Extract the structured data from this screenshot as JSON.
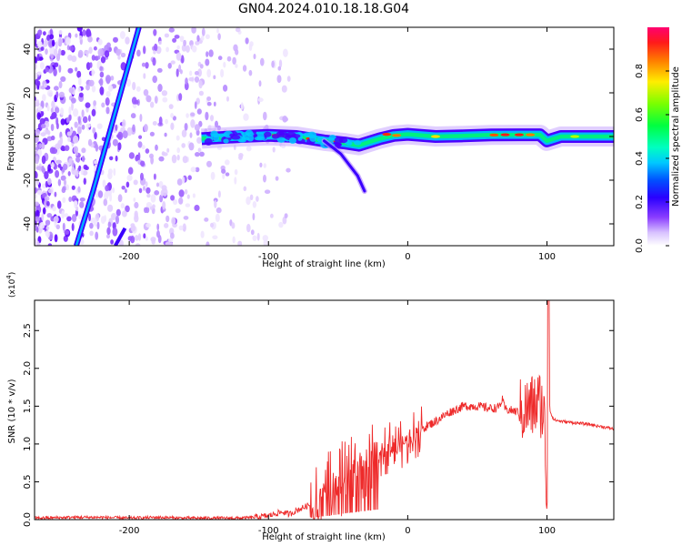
{
  "figure": {
    "title": "GN04.2024.010.18.18.G04",
    "colors": {
      "snr_line": "#ee2a2a",
      "colormap": [
        "#ffffff",
        "#e6d3ff",
        "#9b4dff",
        "#5a00ff",
        "#0030ff",
        "#00e0ff",
        "#00ff60",
        "#b0ff00",
        "#ffe000",
        "#ff6000",
        "#ff0030",
        "#ff0080"
      ]
    }
  },
  "chart_data": [
    {
      "type": "heatmap",
      "xlabel": "Height of straight line (km)",
      "ylabel": "Frequency (Hz)",
      "xlim": [
        -268,
        148
      ],
      "ylim": [
        -50,
        50
      ],
      "xticks": [
        -200,
        -100,
        0,
        100
      ],
      "xtick_labels": [
        "-200",
        "-100",
        "0",
        "100"
      ],
      "yticks": [
        -40,
        -20,
        0,
        20,
        40
      ],
      "ytick_labels": [
        "-40",
        "-20",
        "0",
        "20",
        "40"
      ],
      "colorbar": {
        "label": "Normalized spectral amplitude",
        "range": [
          0,
          1
        ],
        "ticks": [
          0.0,
          0.2,
          0.4,
          0.6,
          0.8
        ],
        "tick_labels": [
          "0.0",
          "0.2",
          "0.4",
          "0.6",
          "0.8"
        ]
      },
      "features": {
        "noise_region_x": [
          -268,
          -105
        ],
        "main_ridge": [
          [
            -148,
            -1
          ],
          [
            -120,
            0
          ],
          [
            -100,
            0.5
          ],
          [
            -80,
            0
          ],
          [
            -60,
            -2
          ],
          [
            -45,
            -3
          ],
          [
            -35,
            -4
          ],
          [
            -20,
            -1
          ],
          [
            -10,
            0.5
          ],
          [
            0,
            1
          ],
          [
            20,
            0
          ],
          [
            40,
            0.3
          ],
          [
            60,
            0.7
          ],
          [
            80,
            0.8
          ],
          [
            95,
            0.8
          ],
          [
            100,
            -2
          ],
          [
            110,
            0
          ],
          [
            148,
            0
          ]
        ],
        "drift_line": [
          [
            -238,
            -50
          ],
          [
            -226,
            -25
          ],
          [
            -215,
            0
          ],
          [
            -204,
            25
          ],
          [
            -193,
            50
          ]
        ],
        "drift_line_2": [
          [
            -210,
            -50
          ],
          [
            -203,
            -42
          ]
        ],
        "branch": [
          [
            -60,
            -2
          ],
          [
            -48,
            -8
          ],
          [
            -36,
            -18
          ],
          [
            -31,
            -25
          ]
        ]
      }
    },
    {
      "type": "line",
      "xlabel": "Height of straight line (km)",
      "ylabel": "SNR (10 * v/v)",
      "y_multiplier": "(x10⁴)",
      "xlim": [
        -268,
        148
      ],
      "ylim": [
        0,
        2.9
      ],
      "xticks": [
        -200,
        -100,
        0,
        100
      ],
      "xtick_labels": [
        "-200",
        "-100",
        "0",
        "100"
      ],
      "yticks": [
        0.0,
        0.5,
        1.0,
        1.5,
        2.0,
        2.5
      ],
      "ytick_labels": [
        "0.0",
        "0.5",
        "1.0",
        "1.5",
        "2.0",
        "2.5"
      ],
      "series": [
        {
          "x": [
            -268,
            -240,
            -220,
            -200,
            -180,
            -160,
            -140,
            -120,
            -110,
            -100,
            -95,
            -90,
            -85,
            -80,
            -75,
            -70,
            -65,
            -60,
            -55,
            -50,
            -45,
            -40,
            -35,
            -30,
            -25,
            -20,
            -15,
            -10,
            -5,
            0,
            5,
            10,
            20,
            30,
            40,
            50,
            60,
            65,
            68,
            70,
            75,
            80,
            85,
            90,
            95,
            98,
            100,
            101,
            102,
            103,
            105,
            110,
            120,
            130,
            148
          ],
          "y": [
            0.02,
            0.03,
            0.03,
            0.02,
            0.03,
            0.02,
            0.02,
            0.02,
            0.03,
            0.05,
            0.08,
            0.1,
            0.07,
            0.12,
            0.16,
            0.2,
            0.25,
            0.3,
            0.38,
            0.45,
            0.55,
            0.65,
            0.72,
            0.8,
            0.85,
            0.9,
            0.95,
            0.98,
            1.0,
            1.05,
            1.12,
            1.2,
            1.3,
            1.42,
            1.5,
            1.5,
            1.47,
            1.48,
            1.58,
            1.46,
            1.44,
            1.42,
            1.45,
            1.5,
            1.55,
            1.4,
            0.1,
            2.9,
            1.45,
            1.4,
            1.32,
            1.3,
            1.28,
            1.26,
            1.2
          ]
        }
      ]
    }
  ]
}
